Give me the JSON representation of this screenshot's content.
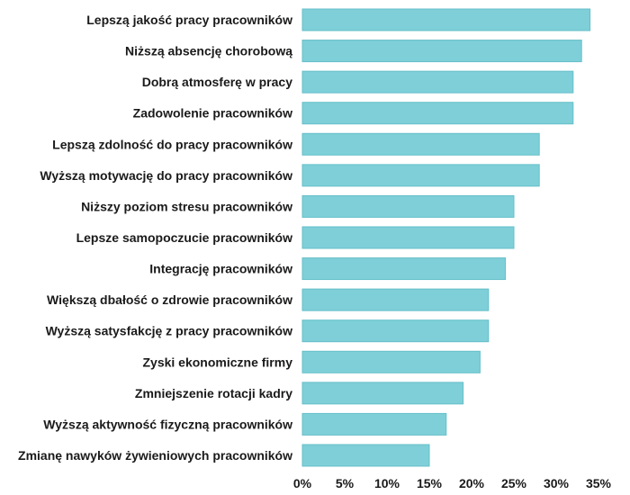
{
  "chart_data": {
    "type": "bar",
    "orientation": "horizontal",
    "title": "",
    "xlabel": "",
    "ylabel": "",
    "categories": [
      "Lepszą jakość pracy pracowników",
      "Niższą absencję chorobową",
      "Dobrą atmosferę w pracy",
      "Zadowolenie pracowników",
      "Lepszą zdolność do pracy pracowników",
      "Wyższą motywację do pracy pracowników",
      "Niższy poziom stresu pracowników",
      "Lepsze samopoczucie pracowników",
      "Integrację pracowników",
      "Większą dbałość o zdrowie pracowników",
      "Wyższą satysfakcję z pracy pracowników",
      "Zyski ekonomiczne firmy",
      "Zmniejszenie rotacji kadry",
      "Wyższą aktywność fizyczną pracowników",
      "Zmianę nawyków żywieniowych pracowników"
    ],
    "values": [
      34,
      33,
      32,
      32,
      28,
      28,
      25,
      25,
      24,
      22,
      22,
      21,
      19,
      17,
      15
    ],
    "unit": "%",
    "xlim": [
      0,
      35
    ],
    "xticks": [
      "0%",
      "5%",
      "10%",
      "15%",
      "20%",
      "25%",
      "30%",
      "35%"
    ],
    "tick_values": [
      0,
      5,
      10,
      15,
      20,
      25,
      30,
      35
    ],
    "grid": false,
    "legend": "none",
    "bar_color": "#7ecfd8",
    "bar_stroke": "#66bfc9"
  }
}
